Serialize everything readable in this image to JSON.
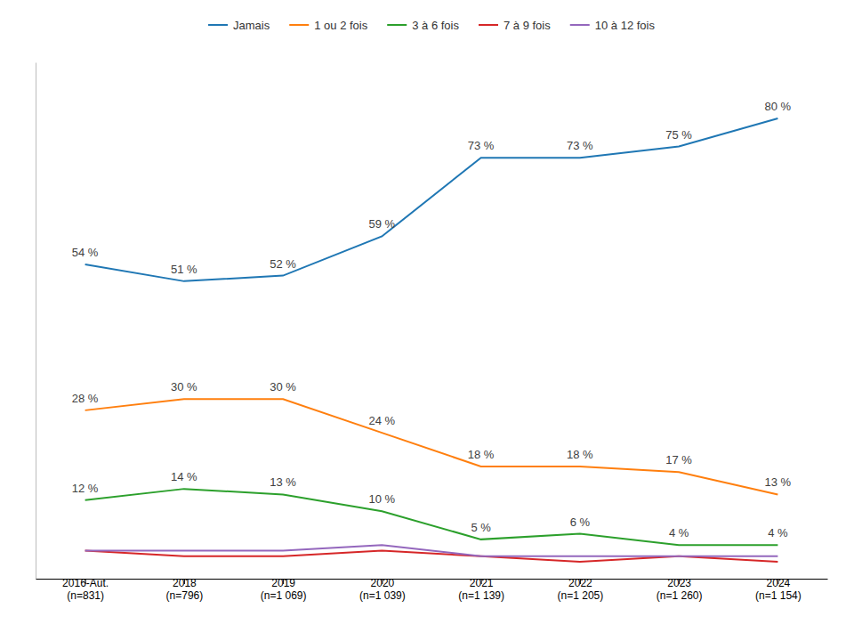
{
  "chart_data": {
    "type": "line",
    "categories": [
      "2016-Aut.\n(n=831)",
      "2018\n(n=796)",
      "2019\n(n=1 069)",
      "2020\n(n=1 039)",
      "2021\n(n=1 139)",
      "2022\n(n=1 205)",
      "2023\n(n=1 260)",
      "2024\n(n=1 154)"
    ],
    "series": [
      {
        "name": "Jamais",
        "values": [
          54,
          51,
          52,
          59,
          73,
          73,
          75,
          80
        ],
        "data_labels": true,
        "value_labels": [
          "54 %",
          "51 %",
          "52 %",
          "59 %",
          "73 %",
          "73 %",
          "75 %",
          "80 %"
        ]
      },
      {
        "name": "1 ou 2 fois",
        "values": [
          28,
          30,
          30,
          24,
          18,
          18,
          17,
          13
        ],
        "data_labels": true,
        "value_labels": [
          "28 %",
          "30 %",
          "30 %",
          "24 %",
          "18 %",
          "18 %",
          "17 %",
          "13 %"
        ]
      },
      {
        "name": "3 à 6 fois",
        "values": [
          12,
          14,
          13,
          10,
          5,
          6,
          4,
          4
        ],
        "data_labels": true,
        "value_labels": [
          "12 %",
          "14 %",
          "13 %",
          "10 %",
          "5 %",
          "6 %",
          "4 %",
          "4 %"
        ]
      },
      {
        "name": "7 à 9 fois",
        "values": [
          3,
          2,
          2,
          3,
          2,
          1,
          2,
          1
        ],
        "data_labels": false
      },
      {
        "name": "10 à 12 fois",
        "values": [
          3,
          3,
          3,
          4,
          2,
          2,
          2,
          2
        ],
        "data_labels": false
      }
    ],
    "ylim": [
      -2,
      90
    ],
    "tick_labels": "x",
    "grid": false,
    "legend": "top"
  }
}
